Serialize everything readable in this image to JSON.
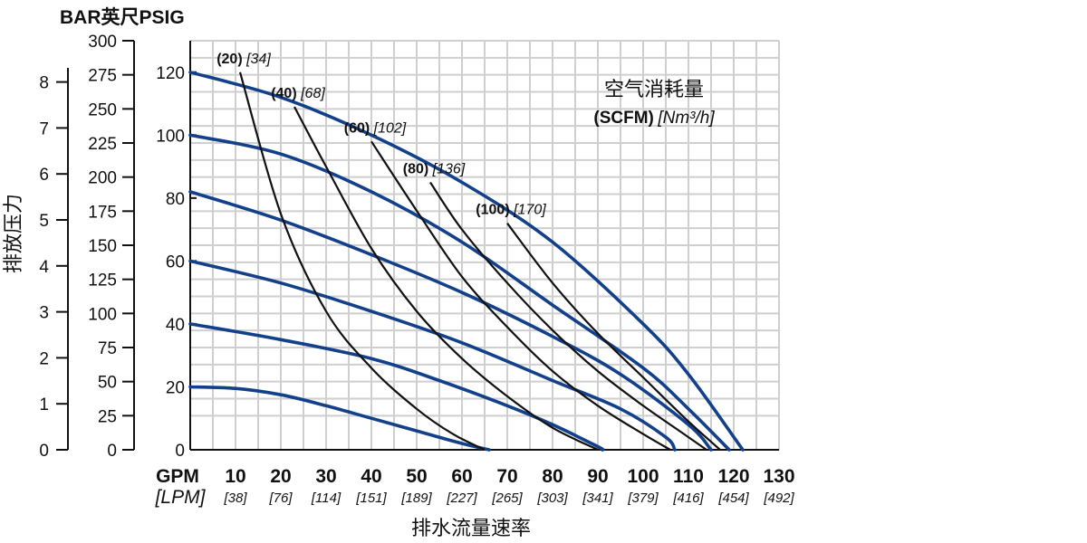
{
  "chart_data": {
    "type": "line",
    "title": "BAR英尺PSIG",
    "xlabel": "排水流量速率",
    "ylabel": "排放压力",
    "x_unit_primary": "GPM",
    "x_unit_secondary": "[LPM]",
    "xlim": [
      0,
      130
    ],
    "ylim_feet": [
      0,
      300
    ],
    "ylim_psig": [
      0,
      130
    ],
    "ylim_bar": [
      0,
      9
    ],
    "x_ticks": [
      10,
      20,
      30,
      40,
      50,
      60,
      70,
      80,
      90,
      100,
      110,
      120,
      130
    ],
    "x_ticks_lpm": [
      "[38]",
      "[76]",
      "[114]",
      "[151]",
      "[189]",
      "[227]",
      "[265]",
      "[303]",
      "[341]",
      "[379]",
      "[416]",
      "[454]",
      "[492]"
    ],
    "y_ticks_feet": [
      0,
      25,
      50,
      75,
      100,
      125,
      150,
      175,
      200,
      225,
      250,
      275,
      300
    ],
    "y_ticks_psig": [
      0,
      20,
      40,
      60,
      80,
      100,
      120
    ],
    "y_ticks_bar": [
      0,
      1,
      2,
      3,
      4,
      5,
      6,
      7,
      8
    ],
    "grid": true,
    "legend_title_line1": "空气消耗量",
    "legend_title_line2_bold": "(SCFM)",
    "legend_title_line2_italic": "[Nm³/h]",
    "series": [
      {
        "x": [
          0,
          10,
          20,
          30,
          40,
          50,
          60,
          66
        ],
        "y": [
          20,
          19.5,
          17.5,
          14,
          10,
          6,
          2,
          0
        ]
      },
      {
        "x": [
          0,
          20,
          40,
          55,
          70,
          80,
          90,
          91
        ],
        "y": [
          40,
          35,
          29,
          22,
          14,
          8,
          1,
          0
        ]
      },
      {
        "x": [
          0,
          20,
          40,
          60,
          80,
          95,
          105,
          107
        ],
        "y": [
          60,
          53,
          44,
          34,
          22,
          13,
          4,
          0
        ]
      },
      {
        "x": [
          0,
          20,
          40,
          60,
          80,
          95,
          110,
          115
        ],
        "y": [
          82,
          73,
          62,
          50,
          36,
          24,
          8,
          0
        ]
      },
      {
        "x": [
          0,
          20,
          40,
          60,
          80,
          100,
          110,
          119
        ],
        "y": [
          100,
          94,
          82,
          66,
          46,
          26,
          13,
          0
        ]
      },
      {
        "x": [
          0,
          20,
          40,
          60,
          80,
          100,
          110,
          122
        ],
        "y": [
          120,
          112,
          100,
          85,
          66,
          40,
          24,
          0
        ]
      }
    ],
    "air_consumption_lines": [
      {
        "label_scfm": "(20)",
        "label_nm3h": "[34]",
        "x": [
          11,
          20,
          30,
          40,
          50,
          58,
          65
        ],
        "y": [
          120,
          75,
          44,
          26,
          13,
          5,
          0
        ]
      },
      {
        "label_scfm": "(40)",
        "label_nm3h": "[68]",
        "x": [
          23,
          30,
          40,
          50,
          60,
          70,
          80,
          90
        ],
        "y": [
          109,
          90,
          64,
          44,
          29,
          17,
          7,
          0
        ]
      },
      {
        "label_scfm": "(60)",
        "label_nm3h": "[102]",
        "x": [
          40,
          50,
          60,
          70,
          80,
          90,
          100,
          106
        ],
        "y": [
          98,
          76,
          55,
          39,
          25,
          14,
          5,
          0
        ]
      },
      {
        "label_scfm": "(80)",
        "label_nm3h": "[136]",
        "x": [
          53,
          60,
          70,
          80,
          90,
          100,
          108,
          114
        ],
        "y": [
          85,
          70,
          53,
          38,
          25,
          14,
          6,
          0
        ]
      },
      {
        "label_scfm": "(100)",
        "label_nm3h": "[170]",
        "x": [
          70,
          80,
          90,
          100,
          110,
          117
        ],
        "y": [
          72,
          53,
          37,
          23,
          9,
          0
        ]
      }
    ]
  }
}
